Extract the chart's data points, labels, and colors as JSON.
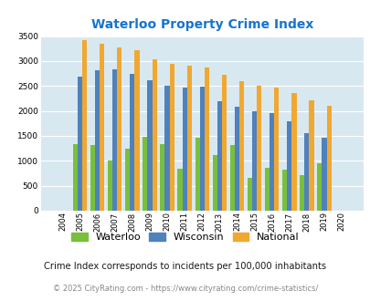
{
  "title": "Waterloo Property Crime Index",
  "years": [
    2004,
    2005,
    2006,
    2007,
    2008,
    2009,
    2010,
    2011,
    2012,
    2013,
    2014,
    2015,
    2016,
    2017,
    2018,
    2019,
    2020
  ],
  "waterloo": [
    0,
    1330,
    1310,
    1000,
    1240,
    1490,
    1330,
    850,
    1470,
    1110,
    1315,
    650,
    860,
    820,
    720,
    960,
    0
  ],
  "wisconsin": [
    0,
    2680,
    2810,
    2830,
    2750,
    2620,
    2510,
    2470,
    2480,
    2190,
    2090,
    2000,
    1950,
    1800,
    1560,
    1470,
    0
  ],
  "national": [
    0,
    3420,
    3350,
    3270,
    3210,
    3040,
    2950,
    2910,
    2870,
    2730,
    2600,
    2500,
    2460,
    2360,
    2210,
    2110,
    0
  ],
  "waterloo_color": "#78c03c",
  "wisconsin_color": "#4f81bd",
  "national_color": "#f0a830",
  "bg_color": "#d8e8f0",
  "ylim": [
    0,
    3500
  ],
  "yticks": [
    0,
    500,
    1000,
    1500,
    2000,
    2500,
    3000,
    3500
  ],
  "footnote": "Crime Index corresponds to incidents per 100,000 inhabitants",
  "copyright": "© 2025 CityRating.com - https://www.cityrating.com/crime-statistics/",
  "title_color": "#1874cd",
  "footnote_color": "#1a1a1a",
  "copyright_color": "#888888"
}
